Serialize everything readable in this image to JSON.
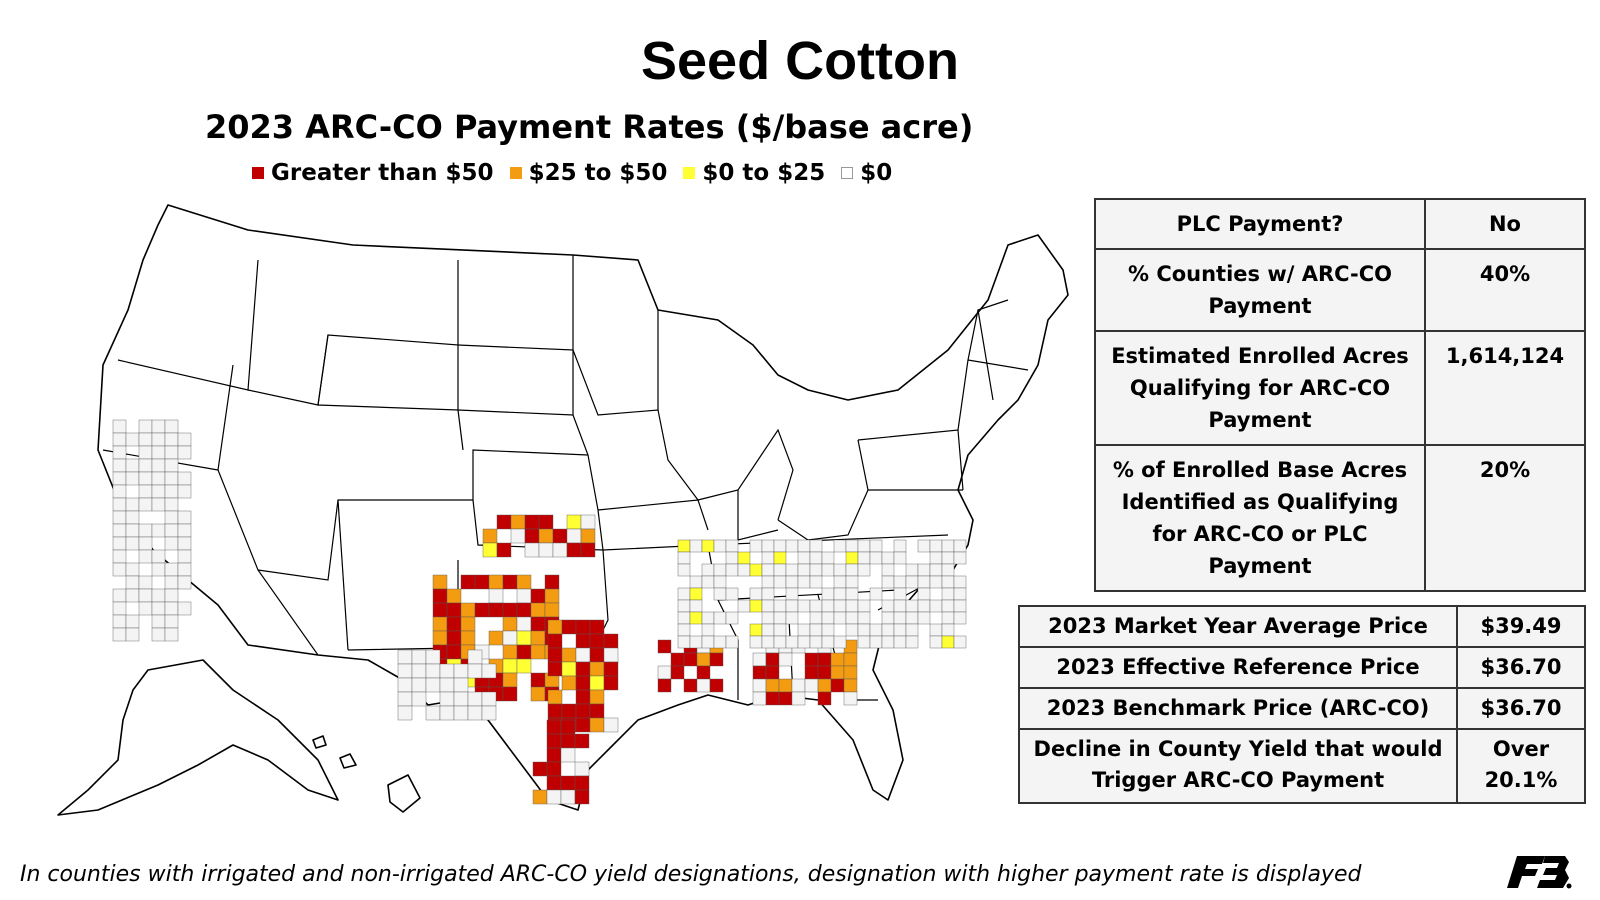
{
  "title": "Seed Cotton",
  "subtitle": "2023 ARC-CO Payment Rates ($/base acre)",
  "legend": [
    {
      "label": "Greater than $50",
      "color": "#c00000"
    },
    {
      "label": "$25 to $50",
      "color": "#f39c12"
    },
    {
      "label": "$0 to $25",
      "color": "#ffff33"
    },
    {
      "label": "$0",
      "color": "#ffffff"
    }
  ],
  "table1": [
    {
      "label": "PLC Payment?",
      "value": "No"
    },
    {
      "label": "% Counties w/ ARC-CO Payment",
      "value": "40%"
    },
    {
      "label": "Estimated Enrolled Acres Qualifying for ARC-CO Payment",
      "value": "1,614,124"
    },
    {
      "label": "% of Enrolled Base Acres Identified as Qualifying for ARC-CO or PLC Payment",
      "value": "20%"
    }
  ],
  "table2": [
    {
      "label": "2023 Market Year Average Price",
      "value": "$39.49"
    },
    {
      "label": "2023 Effective Reference Price",
      "value": "$36.70"
    },
    {
      "label": "2023 Benchmark Price (ARC-CO)",
      "value": "$36.70"
    },
    {
      "label": "Decline in County Yield that would Trigger ARC-CO Payment",
      "value": "Over 20.1%"
    }
  ],
  "footnote": "In counties with irrigated and non-irrigated ARC-CO yield designations, designation with higher payment rate is displayed",
  "colors": {
    "red": "#c00000",
    "orange": "#f39c12",
    "yellow": "#ffff33",
    "zero_fill": "#f4f4f4"
  }
}
